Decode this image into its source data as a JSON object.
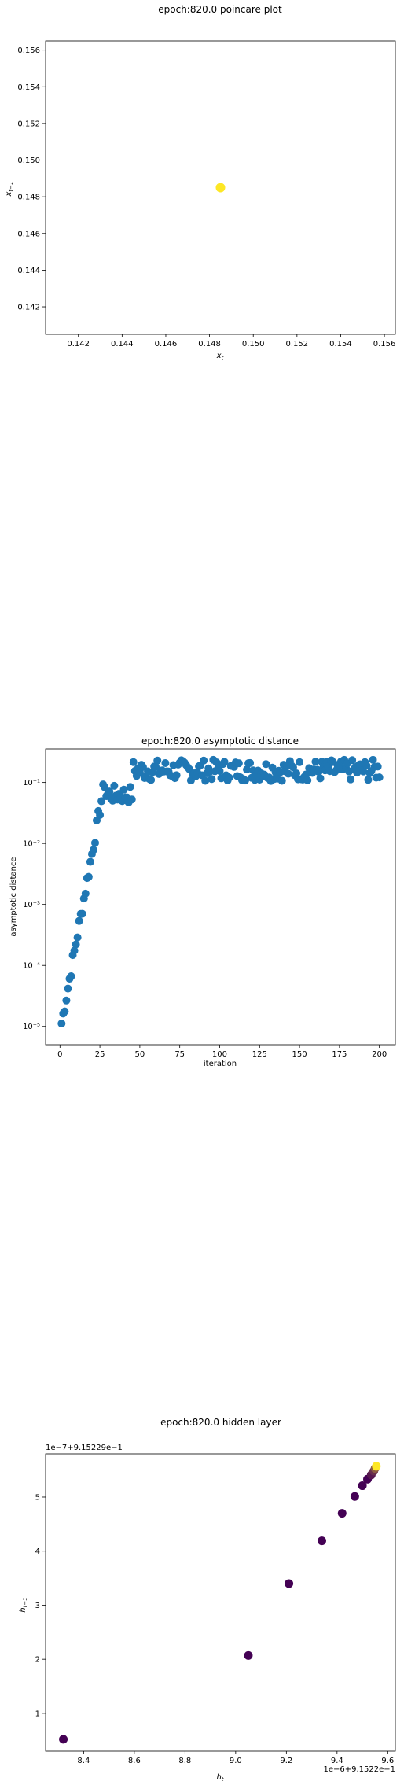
{
  "chart_data": [
    {
      "type": "scatter",
      "title": "epoch:820.0 poincare plot",
      "xlabel": "x_t",
      "ylabel": "x_{t-1}",
      "xlim": [
        0.1405,
        0.1565
      ],
      "ylim": [
        0.1405,
        0.1565
      ],
      "xticks": [
        "0.142",
        "0.144",
        "0.146",
        "0.148",
        "0.150",
        "0.152",
        "0.154",
        "0.156"
      ],
      "yticks": [
        "0.142",
        "0.144",
        "0.146",
        "0.148",
        "0.150",
        "0.152",
        "0.154",
        "0.156"
      ],
      "points": [
        {
          "x": 0.1485,
          "y": 0.1485
        }
      ],
      "marker_color": "#fde725",
      "grid": false
    },
    {
      "type": "scatter",
      "title": "epoch:820.0 asymptotic distance",
      "xlabel": "iteration",
      "ylabel": "asymptotic distance",
      "yscale": "log",
      "xlim": [
        -9,
        210
      ],
      "ylim_exp": [
        -5.3,
        -0.45
      ],
      "xticks": [
        "0",
        "25",
        "50",
        "75",
        "100",
        "125",
        "150",
        "175",
        "200"
      ],
      "yticks": [
        "10⁻⁵",
        "10⁻⁴",
        "10⁻³",
        "10⁻²",
        "10⁻¹"
      ],
      "marker_color": "#1f77b4",
      "grid": false
    },
    {
      "type": "scatter",
      "title": "epoch:820.0 hidden layer",
      "xlabel": "h_t",
      "ylabel": "h_{t-1}",
      "x_offset_text": "1e−6+9.1522e−1",
      "y_offset_text": "1e−7+9.15229e−1",
      "xlim": [
        8.25,
        9.63
      ],
      "ylim": [
        0.3,
        5.8
      ],
      "xticks": [
        "8.4",
        "8.6",
        "8.8",
        "9.0",
        "9.2",
        "9.4",
        "9.6"
      ],
      "yticks": [
        "1",
        "2",
        "3",
        "4",
        "5"
      ],
      "points": [
        {
          "x": 8.32,
          "y": 0.52,
          "c": 0.0
        },
        {
          "x": 9.05,
          "y": 2.07,
          "c": 0.0
        },
        {
          "x": 9.21,
          "y": 3.4,
          "c": 0.0
        },
        {
          "x": 9.34,
          "y": 4.19,
          "c": 0.0
        },
        {
          "x": 9.42,
          "y": 4.7,
          "c": 0.0
        },
        {
          "x": 9.47,
          "y": 5.01,
          "c": 0.0
        },
        {
          "x": 9.5,
          "y": 5.21,
          "c": 0.0
        },
        {
          "x": 9.52,
          "y": 5.33,
          "c": 0.0
        },
        {
          "x": 9.535,
          "y": 5.41,
          "c": 0.1
        },
        {
          "x": 9.545,
          "y": 5.48,
          "c": 0.2
        },
        {
          "x": 9.55,
          "y": 5.53,
          "c": 0.4
        },
        {
          "x": 9.555,
          "y": 5.57,
          "c": 1.0
        }
      ],
      "colors": [
        "#440154",
        "#fde725"
      ],
      "grid": false
    }
  ]
}
